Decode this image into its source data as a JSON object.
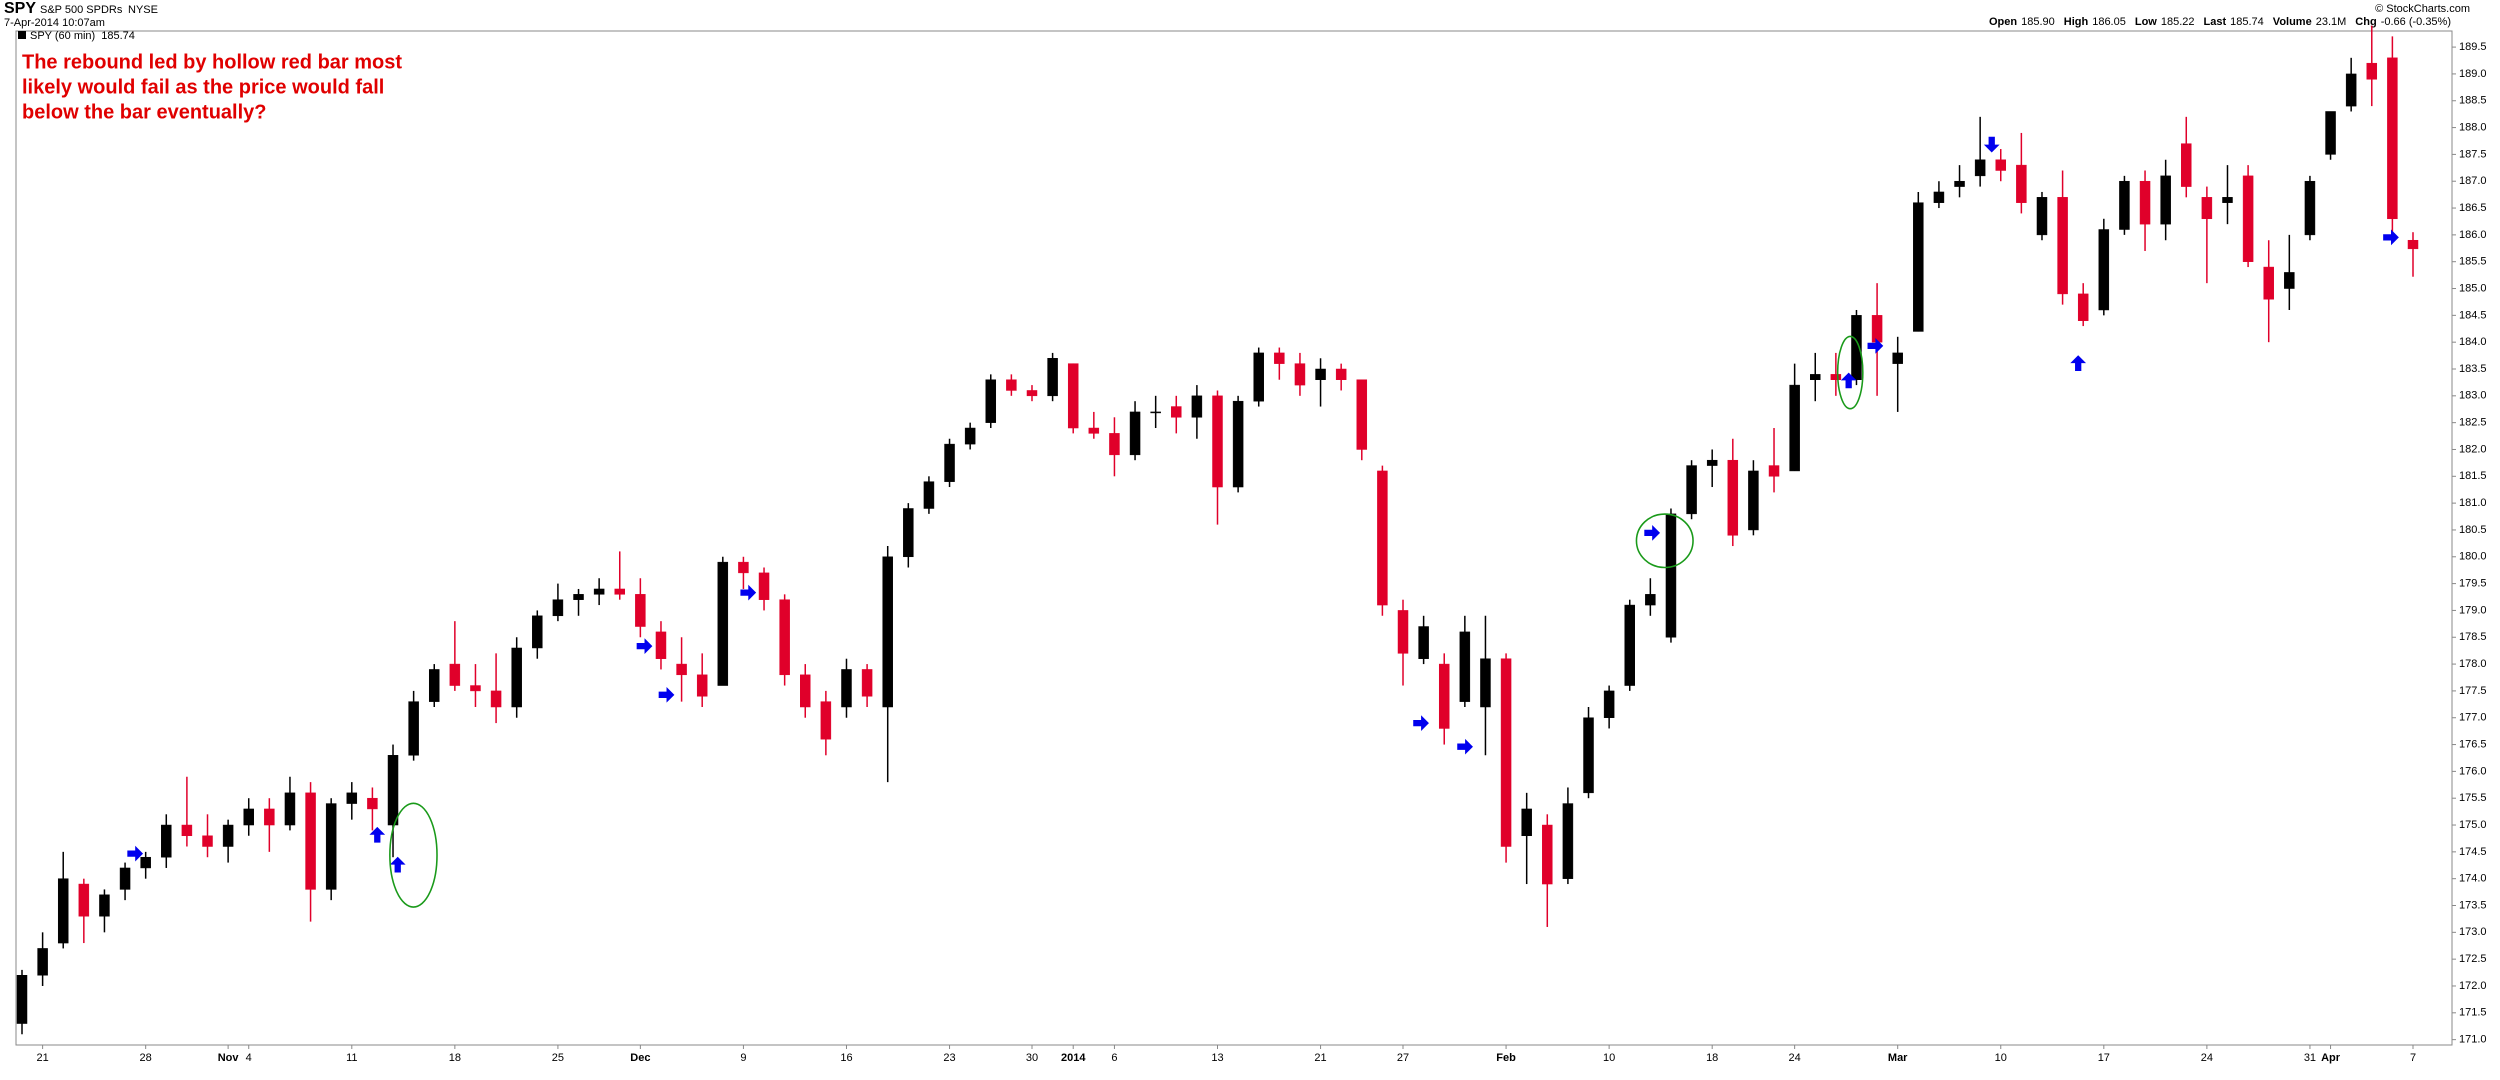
{
  "header": {
    "symbol": "SPY",
    "name": "S&P 500 SPDRs",
    "exchange": "NYSE",
    "timestamp": "7-Apr-2014 10:07am",
    "watermark": "© StockCharts.com",
    "quote": [
      {
        "name": "Open",
        "text": "185.90"
      },
      {
        "name": "High",
        "text": "186.05"
      },
      {
        "name": "Low",
        "text": "185.22"
      },
      {
        "name": "Volume",
        "text": "23.1M"
      },
      {
        "name": "Chg",
        "text": "-0.66 (-0.35%)"
      }
    ],
    "last_name": "Last"
  },
  "annotation": [
    "The rebound led by hollow red bar most",
    "likely would fail as the price would fall",
    "below the bar eventually?"
  ],
  "chart_data": {
    "type": "candlestick",
    "up_color": "#000000",
    "down_color": "#e0002a",
    "grid": false,
    "ylim": [
      170.9,
      189.8
    ],
    "yticks": [
      {
        "value": 171,
        "label": "171.0"
      },
      {
        "value": 171.5,
        "label": "171.5"
      },
      {
        "value": 172,
        "label": "172.0"
      },
      {
        "value": 172.5,
        "label": "172.5"
      },
      {
        "value": 173,
        "label": "173.0"
      },
      {
        "value": 173.5,
        "label": "173.5"
      },
      {
        "value": 174,
        "label": "174.0"
      },
      {
        "value": 174.5,
        "label": "174.5"
      },
      {
        "value": 175,
        "label": "175.0"
      },
      {
        "value": 175.5,
        "label": "175.5"
      },
      {
        "value": 176,
        "label": "176.0"
      },
      {
        "value": 176.5,
        "label": "176.5"
      },
      {
        "value": 177,
        "label": "177.0"
      },
      {
        "value": 177.5,
        "label": "177.5"
      },
      {
        "value": 178,
        "label": "178.0"
      },
      {
        "value": 178.5,
        "label": "178.5"
      },
      {
        "value": 179,
        "label": "179.0"
      },
      {
        "value": 179.5,
        "label": "179.5"
      },
      {
        "value": 180,
        "label": "180.0"
      },
      {
        "value": 180.5,
        "label": "180.5"
      },
      {
        "value": 181,
        "label": "181.0"
      },
      {
        "value": 181.5,
        "label": "181.5"
      },
      {
        "value": 182,
        "label": "182.0"
      },
      {
        "value": 182.5,
        "label": "182.5"
      },
      {
        "value": 183,
        "label": "183.0"
      },
      {
        "value": 183.5,
        "label": "183.5"
      },
      {
        "value": 184,
        "label": "184.0"
      },
      {
        "value": 184.5,
        "label": "184.5"
      },
      {
        "value": 185,
        "label": "185.0"
      },
      {
        "value": 185.5,
        "label": "185.5"
      },
      {
        "value": 186,
        "label": "186.0"
      },
      {
        "value": 186.5,
        "label": "186.5"
      },
      {
        "value": 187,
        "label": "187.0"
      },
      {
        "value": 187.5,
        "label": "187.5"
      },
      {
        "value": 188,
        "label": "188.0"
      },
      {
        "value": 188.5,
        "label": "188.5"
      },
      {
        "value": 189,
        "label": "189.0"
      },
      {
        "value": 189.5,
        "label": "189.5"
      }
    ],
    "categories": [
      null,
      "21",
      null,
      null,
      null,
      null,
      "28",
      null,
      null,
      null,
      "Nov",
      "4",
      null,
      null,
      null,
      null,
      "11",
      null,
      null,
      null,
      null,
      "18",
      null,
      null,
      null,
      null,
      "25",
      null,
      null,
      null,
      "Dec",
      null,
      null,
      null,
      null,
      "9",
      null,
      null,
      null,
      null,
      "16",
      null,
      null,
      null,
      null,
      "23",
      null,
      null,
      null,
      "30",
      null,
      "2014",
      null,
      "6",
      null,
      null,
      null,
      null,
      "13",
      null,
      null,
      null,
      null,
      "21",
      null,
      null,
      null,
      "27",
      null,
      null,
      null,
      null,
      "Feb",
      null,
      null,
      null,
      null,
      "10",
      null,
      null,
      null,
      null,
      "18",
      null,
      null,
      null,
      "24",
      null,
      null,
      null,
      null,
      "Mar",
      null,
      null,
      null,
      null,
      "10",
      null,
      null,
      null,
      null,
      "17",
      null,
      null,
      null,
      null,
      "24",
      null,
      null,
      null,
      null,
      "31",
      "Apr",
      null,
      null,
      null,
      "7"
    ],
    "series": [
      {
        "name": "SPY (60 min)",
        "ohlc": [
          [
            171.3,
            172.3,
            171.1,
            172.2
          ],
          [
            172.2,
            173.0,
            172.0,
            172.7
          ],
          [
            172.8,
            174.5,
            172.7,
            174.0
          ],
          [
            173.9,
            174.0,
            172.8,
            173.3
          ],
          [
            173.3,
            173.8,
            173.0,
            173.7
          ],
          [
            173.8,
            174.3,
            173.6,
            174.2
          ],
          [
            174.2,
            174.5,
            174.0,
            174.4
          ],
          [
            174.4,
            175.2,
            174.2,
            175.0
          ],
          [
            175.0,
            175.9,
            174.6,
            174.8
          ],
          [
            174.8,
            175.2,
            174.4,
            174.6
          ],
          [
            174.6,
            175.1,
            174.3,
            175.0
          ],
          [
            175.0,
            175.5,
            174.8,
            175.3
          ],
          [
            175.3,
            175.5,
            174.5,
            175.0
          ],
          [
            175.0,
            175.9,
            174.9,
            175.6
          ],
          [
            175.6,
            175.8,
            173.2,
            173.8
          ],
          [
            173.8,
            175.5,
            173.6,
            175.4
          ],
          [
            175.4,
            175.8,
            175.1,
            175.6
          ],
          [
            175.5,
            175.7,
            174.9,
            175.3
          ],
          [
            175.0,
            176.5,
            174.4,
            176.3
          ],
          [
            176.3,
            177.5,
            176.2,
            177.3
          ],
          [
            177.3,
            178.0,
            177.2,
            177.9
          ],
          [
            178.0,
            178.8,
            177.5,
            177.6
          ],
          [
            177.6,
            178.0,
            177.2,
            177.5
          ],
          [
            177.5,
            178.2,
            176.9,
            177.2
          ],
          [
            177.2,
            178.5,
            177.0,
            178.3
          ],
          [
            178.3,
            179.0,
            178.1,
            178.9
          ],
          [
            178.9,
            179.5,
            178.8,
            179.2
          ],
          [
            179.2,
            179.4,
            178.9,
            179.3
          ],
          [
            179.3,
            179.6,
            179.1,
            179.4
          ],
          [
            179.4,
            180.1,
            179.2,
            179.3
          ],
          [
            179.3,
            179.6,
            178.5,
            178.7
          ],
          [
            178.6,
            178.8,
            177.9,
            178.1
          ],
          [
            178.0,
            178.5,
            177.3,
            177.8
          ],
          [
            177.8,
            178.2,
            177.2,
            177.4
          ],
          [
            177.6,
            180.0,
            177.6,
            179.9
          ],
          [
            179.9,
            180.0,
            179.4,
            179.7
          ],
          [
            179.7,
            179.8,
            179.0,
            179.2
          ],
          [
            179.2,
            179.3,
            177.6,
            177.8
          ],
          [
            177.8,
            178.0,
            177.0,
            177.2
          ],
          [
            177.3,
            177.5,
            176.3,
            176.6
          ],
          [
            177.2,
            178.1,
            177.0,
            177.9
          ],
          [
            177.9,
            178.0,
            177.2,
            177.4
          ],
          [
            177.2,
            180.2,
            175.8,
            180.0
          ],
          [
            180.0,
            181.0,
            179.8,
            180.9
          ],
          [
            180.9,
            181.5,
            180.8,
            181.4
          ],
          [
            181.4,
            182.2,
            181.3,
            182.1
          ],
          [
            182.1,
            182.5,
            182.0,
            182.4
          ],
          [
            182.5,
            183.4,
            182.4,
            183.3
          ],
          [
            183.3,
            183.4,
            183.0,
            183.1
          ],
          [
            183.1,
            183.2,
            182.9,
            183.0
          ],
          [
            183.0,
            183.8,
            182.9,
            183.7
          ],
          [
            183.6,
            183.6,
            182.3,
            182.4
          ],
          [
            182.4,
            182.7,
            182.2,
            182.3
          ],
          [
            182.3,
            182.6,
            181.5,
            181.9
          ],
          [
            181.9,
            182.9,
            181.8,
            182.7
          ],
          [
            182.7,
            183.0,
            182.4,
            182.7
          ],
          [
            182.8,
            183.0,
            182.3,
            182.6
          ],
          [
            182.6,
            183.2,
            182.2,
            183.0
          ],
          [
            183.0,
            183.1,
            180.6,
            181.3
          ],
          [
            181.3,
            183.0,
            181.2,
            182.9
          ],
          [
            182.9,
            183.9,
            182.8,
            183.8
          ],
          [
            183.8,
            183.9,
            183.3,
            183.6
          ],
          [
            183.6,
            183.8,
            183.0,
            183.2
          ],
          [
            183.3,
            183.7,
            182.8,
            183.5
          ],
          [
            183.5,
            183.6,
            183.1,
            183.3
          ],
          [
            183.3,
            183.3,
            181.8,
            182.0
          ],
          [
            181.6,
            181.7,
            178.9,
            179.1
          ],
          [
            179.0,
            179.2,
            177.6,
            178.2
          ],
          [
            178.1,
            178.9,
            178.0,
            178.7
          ],
          [
            178.0,
            178.2,
            176.5,
            176.8
          ],
          [
            177.3,
            178.9,
            177.2,
            178.6
          ],
          [
            177.2,
            178.9,
            176.3,
            178.1
          ],
          [
            178.1,
            178.2,
            174.3,
            174.6
          ],
          [
            174.8,
            175.6,
            173.9,
            175.3
          ],
          [
            175.0,
            175.2,
            173.1,
            173.9
          ],
          [
            174.0,
            175.7,
            173.9,
            175.4
          ],
          [
            175.6,
            177.2,
            175.5,
            177.0
          ],
          [
            177.0,
            177.6,
            176.8,
            177.5
          ],
          [
            177.6,
            179.2,
            177.5,
            179.1
          ],
          [
            179.1,
            179.6,
            178.9,
            179.3
          ],
          [
            178.5,
            180.9,
            178.4,
            180.8
          ],
          [
            180.8,
            181.8,
            180.7,
            181.7
          ],
          [
            181.7,
            182.0,
            181.3,
            181.8
          ],
          [
            181.8,
            182.2,
            180.2,
            180.4
          ],
          [
            180.5,
            181.8,
            180.4,
            181.6
          ],
          [
            181.7,
            182.4,
            181.2,
            181.5
          ],
          [
            181.6,
            183.6,
            181.6,
            183.2
          ],
          [
            183.3,
            183.8,
            182.9,
            183.4
          ],
          [
            183.4,
            183.8,
            183.0,
            183.3
          ],
          [
            183.3,
            184.6,
            183.2,
            184.5
          ],
          [
            184.5,
            185.1,
            183.0,
            184.0
          ],
          [
            183.6,
            184.1,
            182.7,
            183.8
          ],
          [
            184.2,
            186.8,
            184.2,
            186.6
          ],
          [
            186.6,
            187.0,
            186.5,
            186.8
          ],
          [
            186.9,
            187.3,
            186.7,
            187.0
          ],
          [
            187.1,
            188.2,
            186.9,
            187.4
          ],
          [
            187.4,
            187.6,
            187.0,
            187.2
          ],
          [
            187.3,
            187.9,
            186.4,
            186.6
          ],
          [
            186.0,
            186.8,
            185.9,
            186.7
          ],
          [
            186.7,
            187.2,
            184.7,
            184.9
          ],
          [
            184.9,
            185.1,
            184.3,
            184.4
          ],
          [
            184.6,
            186.3,
            184.5,
            186.1
          ],
          [
            186.1,
            187.1,
            186.0,
            187.0
          ],
          [
            187.0,
            187.2,
            185.7,
            186.2
          ],
          [
            186.2,
            187.4,
            185.9,
            187.1
          ],
          [
            187.7,
            188.2,
            186.7,
            186.9
          ],
          [
            186.7,
            186.9,
            185.1,
            186.3
          ],
          [
            186.6,
            187.3,
            186.2,
            186.7
          ],
          [
            187.1,
            187.3,
            185.4,
            185.5
          ],
          [
            185.4,
            185.9,
            184.0,
            184.8
          ],
          [
            185.0,
            186.0,
            184.6,
            185.3
          ],
          [
            186.0,
            187.1,
            185.9,
            187.0
          ],
          [
            187.5,
            188.3,
            187.4,
            188.3
          ],
          [
            188.4,
            189.3,
            188.3,
            189.0
          ],
          [
            189.2,
            189.9,
            188.4,
            188.9
          ],
          [
            189.3,
            189.7,
            185.9,
            186.3
          ],
          [
            185.9,
            186.05,
            185.22,
            185.74
          ]
        ]
      }
    ]
  }
}
